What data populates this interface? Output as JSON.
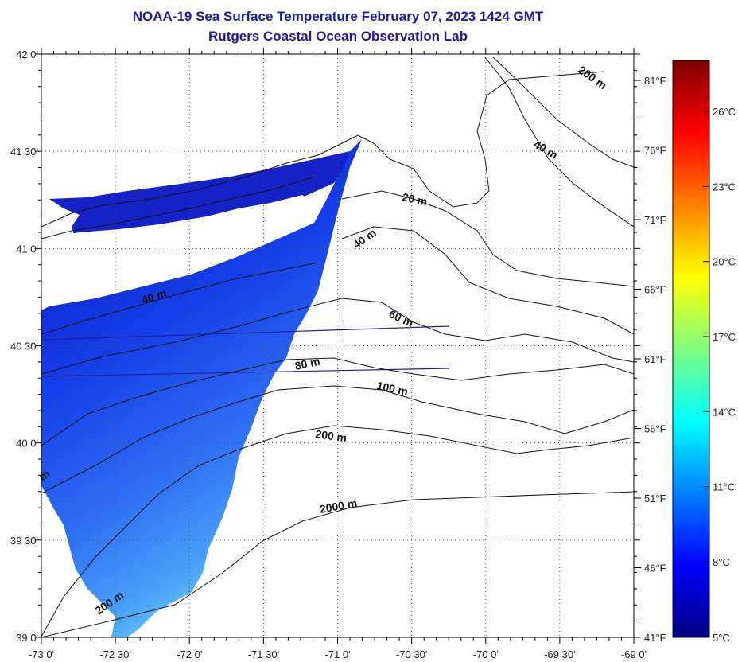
{
  "title": {
    "line1": "NOAA-19 Sea Surface Temperature February 07, 2023 1424 GMT",
    "line2": "Rutgers Coastal Ocean Observation Lab"
  },
  "map": {
    "lat_labels": [
      "42 0'",
      "41 30'",
      "41 0'",
      "40 30'",
      "40 0'",
      "39 30'",
      "39 0'"
    ],
    "lon_labels": [
      "-73 0'",
      "-72 30'",
      "-72 0'",
      "-71 30'",
      "-71 0'",
      "-70 30'",
      "-70 0'",
      "-69 30'",
      "-69 0'"
    ],
    "lat_range": [
      39,
      42
    ],
    "lon_range": [
      -73,
      -69
    ],
    "grid": "dotted",
    "isobath_labels": [
      {
        "text": "200 m",
        "depth": 200
      },
      {
        "text": "40 m",
        "depth": 40
      },
      {
        "text": "20 m",
        "depth": 20
      },
      {
        "text": "40 m",
        "depth": 40
      },
      {
        "text": "40 m",
        "depth": 40
      },
      {
        "text": "60 m",
        "depth": 60
      },
      {
        "text": "80 m",
        "depth": 80
      },
      {
        "text": "100 m",
        "depth": 100
      },
      {
        "text": "200 m",
        "depth": 200
      },
      {
        "text": "2000 m",
        "depth": 2000
      },
      {
        "text": "200 m",
        "depth": 200
      },
      {
        "text": "m",
        "depth": null
      }
    ]
  },
  "colorbar": {
    "fahrenheit_labels": [
      "81°F",
      "76°F",
      "71°F",
      "66°F",
      "61°F",
      "56°F",
      "51°F",
      "46°F",
      "41°F"
    ],
    "celsius_labels": [
      "26°C",
      "23°C",
      "20°C",
      "17°C",
      "14°C",
      "11°C",
      "8°C",
      "5°C"
    ],
    "range_c": [
      5,
      28
    ],
    "colors": [
      "#00007f",
      "#0000ff",
      "#007fff",
      "#00ffff",
      "#7fff7f",
      "#ffff00",
      "#ff7f00",
      "#ff0000",
      "#7f0000"
    ]
  }
}
